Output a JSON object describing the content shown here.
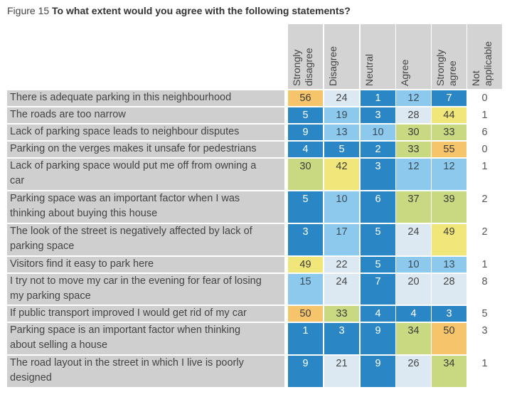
{
  "figure": {
    "label": "Figure 15",
    "title": "To what extent would you agree with the following statements?"
  },
  "palette": {
    "dark_blue": "#2b86c5",
    "light_blue": "#8dc9ec",
    "pale_blue": "#dde9f2",
    "green": "#c9d982",
    "yellow": "#f1e67a",
    "orange": "#f6c46a",
    "header_grey": "#d3d3d3"
  },
  "chart_data": {
    "type": "table",
    "title": "To what extent would you agree with the following statements?",
    "columns": [
      "Strongly disagree",
      "Disagree",
      "Neutral",
      "Agree",
      "Strongly agree",
      "Not applicable"
    ],
    "column_lines": [
      [
        "Strongly",
        "disagree"
      ],
      [
        "Disagree"
      ],
      [
        "Neutral"
      ],
      [
        "Agree"
      ],
      [
        "Strongly",
        "agree"
      ],
      [
        "Not",
        "applicable"
      ]
    ],
    "rows": [
      {
        "statement": "There is adequate parking in this neighbourhood",
        "lines": [
          "There is adequate parking in this neighbourhood"
        ],
        "values": [
          56,
          24,
          1,
          12,
          7,
          0
        ]
      },
      {
        "statement": "The roads are too narrow",
        "lines": [
          "The roads are too narrow"
        ],
        "values": [
          5,
          19,
          3,
          28,
          44,
          1
        ]
      },
      {
        "statement": "Lack of parking space leads to neighbour disputes",
        "lines": [
          "Lack of parking space leads to neighbour disputes"
        ],
        "values": [
          9,
          13,
          10,
          30,
          33,
          6
        ]
      },
      {
        "statement": "Parking on the verges makes it unsafe for pedestrians",
        "lines": [
          "Parking on the verges makes it unsafe for pedestrians"
        ],
        "values": [
          4,
          5,
          2,
          33,
          55,
          0
        ]
      },
      {
        "statement": "Lack of parking space would put me off from owning a car",
        "lines": [
          "Lack of parking space would put me off from owning a",
          "car"
        ],
        "values": [
          30,
          42,
          3,
          12,
          12,
          1
        ]
      },
      {
        "statement": "Parking space was an important factor when I was thinking about buying this house",
        "lines": [
          "Parking space was an important factor when I was",
          "thinking about buying this house"
        ],
        "values": [
          5,
          10,
          6,
          37,
          39,
          2
        ]
      },
      {
        "statement": "The look of the street is negatively affected by lack of parking space",
        "lines": [
          "The look of the street is negatively affected by lack of",
          "parking space"
        ],
        "values": [
          3,
          17,
          5,
          24,
          49,
          2
        ]
      },
      {
        "statement": "Visitors find it easy to park here",
        "lines": [
          "Visitors find it easy to park here"
        ],
        "values": [
          49,
          22,
          5,
          10,
          13,
          1
        ]
      },
      {
        "statement": "I try not to move my car in the evening for fear of losing my parking space",
        "lines": [
          "I try not to move my car in the evening for fear of losing",
          "my parking space"
        ],
        "values": [
          15,
          24,
          7,
          20,
          28,
          8
        ]
      },
      {
        "statement": "If public transport improved I would get rid of my car",
        "lines": [
          "If public transport improved I would get rid of my car"
        ],
        "values": [
          50,
          33,
          4,
          4,
          3,
          5
        ]
      },
      {
        "statement": "Parking space is an important factor when thinking about selling a house",
        "lines": [
          "Parking space is an important factor when thinking",
          "about selling a house"
        ],
        "values": [
          1,
          3,
          9,
          34,
          50,
          3
        ]
      },
      {
        "statement": "The road layout in the street in which I live is poorly designed",
        "lines": [
          "The road layout in the street in which I live is poorly",
          "designed"
        ],
        "values": [
          9,
          21,
          9,
          26,
          34,
          1
        ]
      }
    ]
  }
}
